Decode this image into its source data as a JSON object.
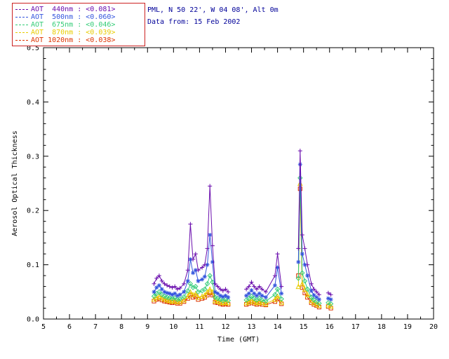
{
  "header": {
    "location_line": "PML, N 50 22', W 04 08', Alt 0m",
    "date_line": "Data from: 15 Feb 2002",
    "color": "#000099"
  },
  "legend": {
    "border_color": "#cc2222",
    "position": "top-left-outside"
  },
  "chart_data": {
    "type": "line",
    "title": "",
    "xlabel": "Time (GMT)",
    "ylabel": "Aerosol Optical Thickness",
    "xlim": [
      5,
      20
    ],
    "ylim": [
      0.0,
      0.5
    ],
    "xticks": [
      5,
      6,
      7,
      8,
      9,
      10,
      11,
      12,
      13,
      14,
      15,
      16,
      17,
      18,
      19,
      20
    ],
    "yticks": [
      0.0,
      0.1,
      0.2,
      0.3,
      0.4,
      0.5
    ],
    "grid": false,
    "frame_color": "#000000",
    "gaps_after_x": [
      12.1,
      14.15,
      15.6
    ],
    "x": [
      9.25,
      9.35,
      9.45,
      9.55,
      9.65,
      9.75,
      9.85,
      9.95,
      10.05,
      10.15,
      10.25,
      10.4,
      10.55,
      10.65,
      10.75,
      10.85,
      10.95,
      11.1,
      11.2,
      11.3,
      11.4,
      11.5,
      11.6,
      11.7,
      11.8,
      11.9,
      12.0,
      12.1,
      12.8,
      12.9,
      13.0,
      13.1,
      13.2,
      13.3,
      13.4,
      13.55,
      13.9,
      14.0,
      14.15,
      14.8,
      14.87,
      14.95,
      15.05,
      15.15,
      15.3,
      15.4,
      15.5,
      15.6,
      15.95,
      16.05
    ],
    "series": [
      {
        "id": "aot-440nm",
        "name": "AOT 440nm",
        "mean": "<0.081>",
        "legend_label": "AOT  440nm : <0.081>",
        "color": "#6a0dad",
        "marker": "plus",
        "y": [
          0.065,
          0.075,
          0.08,
          0.07,
          0.065,
          0.062,
          0.06,
          0.058,
          0.06,
          0.055,
          0.057,
          0.065,
          0.09,
          0.175,
          0.11,
          0.12,
          0.09,
          0.095,
          0.1,
          0.13,
          0.245,
          0.135,
          0.065,
          0.06,
          0.055,
          0.052,
          0.055,
          0.05,
          0.055,
          0.06,
          0.068,
          0.06,
          0.055,
          0.06,
          0.055,
          0.05,
          0.08,
          0.12,
          0.06,
          0.13,
          0.31,
          0.155,
          0.13,
          0.1,
          0.065,
          0.055,
          0.05,
          0.045,
          0.048,
          0.045
        ]
      },
      {
        "id": "aot-500nm",
        "name": "AOT 500nm",
        "mean": "<0.060>",
        "legend_label": "AOT  500nm : <0.060>",
        "color": "#3355dd",
        "marker": "asterisk",
        "y": [
          0.05,
          0.058,
          0.062,
          0.055,
          0.05,
          0.048,
          0.047,
          0.045,
          0.047,
          0.043,
          0.045,
          0.05,
          0.07,
          0.11,
          0.085,
          0.09,
          0.07,
          0.073,
          0.078,
          0.1,
          0.155,
          0.105,
          0.05,
          0.047,
          0.043,
          0.041,
          0.043,
          0.04,
          0.043,
          0.047,
          0.053,
          0.047,
          0.043,
          0.047,
          0.043,
          0.04,
          0.062,
          0.095,
          0.047,
          0.105,
          0.285,
          0.12,
          0.1,
          0.08,
          0.052,
          0.044,
          0.04,
          0.036,
          0.038,
          0.036
        ]
      },
      {
        "id": "aot-675nm",
        "name": "AOT 675nm",
        "mean": "<0.046>",
        "legend_label": "AOT  675nm : <0.046>",
        "color": "#33cc77",
        "marker": "diamond",
        "y": [
          0.042,
          0.047,
          0.05,
          0.045,
          0.042,
          0.04,
          0.039,
          0.038,
          0.039,
          0.036,
          0.037,
          0.041,
          0.052,
          0.065,
          0.058,
          0.06,
          0.05,
          0.052,
          0.055,
          0.065,
          0.08,
          0.068,
          0.04,
          0.038,
          0.036,
          0.034,
          0.036,
          0.034,
          0.035,
          0.038,
          0.042,
          0.038,
          0.035,
          0.038,
          0.035,
          0.033,
          0.045,
          0.055,
          0.037,
          0.075,
          0.26,
          0.085,
          0.07,
          0.055,
          0.04,
          0.035,
          0.032,
          0.029,
          0.03,
          0.028
        ]
      },
      {
        "id": "aot-870nm",
        "name": "AOT 870nm",
        "mean": "<0.039>",
        "legend_label": "AOT  870nm : <0.039>",
        "color": "#e8cc00",
        "marker": "triangle",
        "y": [
          0.037,
          0.04,
          0.042,
          0.039,
          0.037,
          0.035,
          0.034,
          0.033,
          0.034,
          0.032,
          0.032,
          0.035,
          0.042,
          0.05,
          0.045,
          0.047,
          0.04,
          0.042,
          0.044,
          0.05,
          0.055,
          0.05,
          0.034,
          0.033,
          0.031,
          0.03,
          0.031,
          0.03,
          0.03,
          0.032,
          0.035,
          0.032,
          0.03,
          0.032,
          0.03,
          0.028,
          0.036,
          0.042,
          0.031,
          0.06,
          0.25,
          0.065,
          0.055,
          0.045,
          0.034,
          0.03,
          0.028,
          0.025,
          0.026,
          0.024
        ]
      },
      {
        "id": "aot-1020nm",
        "name": "AOT 1020nm",
        "mean": "<0.038>",
        "legend_label": "AOT 1020nm : <0.038>",
        "color": "#dd3300",
        "marker": "square",
        "y": [
          0.033,
          0.036,
          0.038,
          0.035,
          0.033,
          0.032,
          0.031,
          0.03,
          0.031,
          0.029,
          0.029,
          0.032,
          0.038,
          0.044,
          0.04,
          0.042,
          0.036,
          0.038,
          0.04,
          0.044,
          0.048,
          0.044,
          0.031,
          0.03,
          0.028,
          0.027,
          0.028,
          0.027,
          0.027,
          0.029,
          0.031,
          0.029,
          0.027,
          0.029,
          0.027,
          0.026,
          0.032,
          0.037,
          0.028,
          0.08,
          0.24,
          0.058,
          0.048,
          0.04,
          0.03,
          0.027,
          0.025,
          0.022,
          0.023,
          0.02
        ]
      }
    ]
  }
}
